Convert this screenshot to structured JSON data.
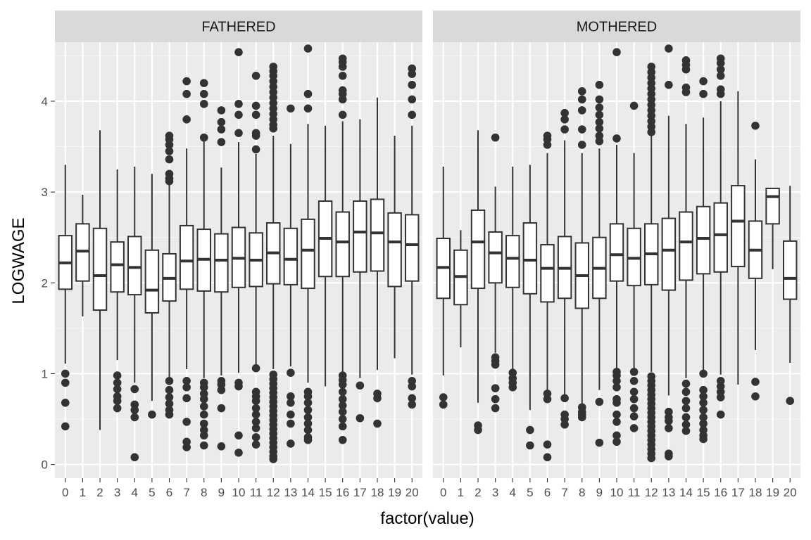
{
  "chart_data": {
    "type": "boxplot",
    "xlabel": "factor(value)",
    "ylabel": "LOGWAGE",
    "ylim": [
      -0.15,
      4.65
    ],
    "y_ticks": [
      0,
      1,
      2,
      3,
      4
    ],
    "categories": [
      "0",
      "1",
      "2",
      "3",
      "4",
      "5",
      "6",
      "7",
      "8",
      "9",
      "10",
      "11",
      "12",
      "13",
      "14",
      "15",
      "16",
      "17",
      "18",
      "19",
      "20"
    ],
    "grid": true,
    "panels": [
      {
        "name": "FATHERED",
        "boxes": [
          {
            "q1": 1.93,
            "median": 2.22,
            "q3": 2.52,
            "lower": 1.11,
            "upper": 3.3,
            "outliers": [
              1.0,
              0.9,
              0.68,
              0.42
            ]
          },
          {
            "q1": 2.02,
            "median": 2.35,
            "q3": 2.65,
            "lower": 1.63,
            "upper": 2.97,
            "outliers": []
          },
          {
            "q1": 1.7,
            "median": 2.08,
            "q3": 2.6,
            "lower": 0.38,
            "upper": 3.68,
            "outliers": []
          },
          {
            "q1": 1.9,
            "median": 2.2,
            "q3": 2.45,
            "lower": 1.15,
            "upper": 3.25,
            "outliers": [
              0.98,
              0.9,
              0.83,
              0.75,
              0.7,
              0.62
            ]
          },
          {
            "q1": 1.87,
            "median": 2.17,
            "q3": 2.51,
            "lower": 0.9,
            "upper": 3.28,
            "outliers": [
              0.83,
              0.66,
              0.6,
              0.52,
              0.08
            ]
          },
          {
            "q1": 1.67,
            "median": 1.92,
            "q3": 2.36,
            "lower": 0.7,
            "upper": 3.2,
            "outliers": [
              0.55
            ]
          },
          {
            "q1": 1.8,
            "median": 2.05,
            "q3": 2.32,
            "lower": 0.95,
            "upper": 3.1,
            "outliers": [
              3.62,
              3.58,
              3.52,
              3.45,
              3.36,
              3.2,
              3.15,
              3.12,
              0.92,
              0.82,
              0.74,
              0.67,
              0.6,
              0.55
            ]
          },
          {
            "q1": 1.93,
            "median": 2.24,
            "q3": 2.63,
            "lower": 1.05,
            "upper": 3.48,
            "outliers": [
              4.22,
              4.08,
              3.8,
              0.92,
              0.85,
              0.73,
              0.47,
              0.25,
              0.19
            ]
          },
          {
            "q1": 1.91,
            "median": 2.26,
            "q3": 2.59,
            "lower": 0.95,
            "upper": 3.58,
            "outliers": [
              4.2,
              4.08,
              3.97,
              3.6,
              0.9,
              0.85,
              0.78,
              0.72,
              0.64,
              0.55,
              0.45,
              0.38,
              0.32,
              0.21
            ]
          },
          {
            "q1": 1.9,
            "median": 2.25,
            "q3": 2.54,
            "lower": 0.98,
            "upper": 3.27,
            "outliers": [
              3.9,
              3.77,
              3.69,
              3.55,
              0.92,
              0.88,
              0.82,
              0.62,
              0.2
            ]
          },
          {
            "q1": 1.95,
            "median": 2.27,
            "q3": 2.61,
            "lower": 1.01,
            "upper": 3.55,
            "outliers": [
              4.54,
              3.97,
              3.85,
              3.65,
              0.9,
              0.86,
              0.32,
              0.13
            ]
          },
          {
            "q1": 1.96,
            "median": 2.25,
            "q3": 2.55,
            "lower": 1.05,
            "upper": 3.42,
            "outliers": [
              4.28,
              3.95,
              3.85,
              3.65,
              3.62,
              3.47,
              1.06,
              0.8,
              0.75,
              0.7,
              0.62,
              0.55,
              0.47,
              0.4,
              0.3,
              0.22
            ]
          },
          {
            "q1": 1.99,
            "median": 2.33,
            "q3": 2.66,
            "lower": 1.05,
            "upper": 3.62,
            "outliers": [
              4.38,
              4.33,
              4.28,
              4.22,
              4.16,
              4.1,
              4.04,
              3.98,
              3.92,
              3.86,
              3.8,
              3.74,
              3.7,
              0.99,
              0.94,
              0.89,
              0.84,
              0.79,
              0.74,
              0.69,
              0.64,
              0.59,
              0.54,
              0.49,
              0.44,
              0.39,
              0.34,
              0.29,
              0.24,
              0.19,
              0.14,
              0.09,
              0.06
            ]
          },
          {
            "q1": 1.98,
            "median": 2.26,
            "q3": 2.6,
            "lower": 1.08,
            "upper": 3.53,
            "outliers": [
              3.92,
              1.01,
              0.75,
              0.68,
              0.55,
              0.45,
              0.23
            ]
          },
          {
            "q1": 1.94,
            "median": 2.36,
            "q3": 2.7,
            "lower": 0.9,
            "upper": 3.75,
            "outliers": [
              4.58,
              4.08,
              3.92,
              0.8,
              0.75,
              0.68,
              0.6,
              0.52,
              0.45,
              0.38,
              0.3,
              0.27
            ]
          },
          {
            "q1": 2.07,
            "median": 2.49,
            "q3": 2.9,
            "lower": 0.86,
            "upper": 3.73,
            "outliers": []
          },
          {
            "q1": 2.07,
            "median": 2.45,
            "q3": 2.78,
            "lower": 1.0,
            "upper": 3.78,
            "outliers": [
              4.47,
              4.43,
              4.38,
              4.28,
              4.12,
              4.08,
              4.02,
              3.85,
              0.98,
              0.93,
              0.88,
              0.8,
              0.72,
              0.65,
              0.58,
              0.5,
              0.42,
              0.27
            ]
          },
          {
            "q1": 2.12,
            "median": 2.56,
            "q3": 2.9,
            "lower": 0.95,
            "upper": 3.8,
            "outliers": [
              0.87,
              0.51
            ]
          },
          {
            "q1": 2.13,
            "median": 2.55,
            "q3": 2.92,
            "lower": 1.04,
            "upper": 4.04,
            "outliers": [
              0.78,
              0.73,
              0.45
            ]
          },
          {
            "q1": 1.96,
            "median": 2.45,
            "q3": 2.77,
            "lower": 1.17,
            "upper": 3.62,
            "outliers": []
          },
          {
            "q1": 2.02,
            "median": 2.42,
            "q3": 2.75,
            "lower": 0.99,
            "upper": 3.73,
            "outliers": [
              4.36,
              4.3,
              4.18,
              4.02,
              3.85,
              0.92,
              0.86,
              0.73,
              0.66
            ]
          }
        ]
      },
      {
        "name": "MOTHERED",
        "boxes": [
          {
            "q1": 1.83,
            "median": 2.17,
            "q3": 2.49,
            "lower": 0.98,
            "upper": 3.28,
            "outliers": [
              0.74,
              0.66
            ]
          },
          {
            "q1": 1.76,
            "median": 2.07,
            "q3": 2.36,
            "lower": 1.29,
            "upper": 2.58,
            "outliers": []
          },
          {
            "q1": 1.94,
            "median": 2.45,
            "q3": 2.8,
            "lower": 0.68,
            "upper": 3.68,
            "outliers": [
              0.43,
              0.38
            ]
          },
          {
            "q1": 2.0,
            "median": 2.33,
            "q3": 2.56,
            "lower": 1.23,
            "upper": 3.06,
            "outliers": [
              3.6,
              1.18,
              1.14,
              1.1,
              0.84,
              0.72,
              0.62
            ]
          },
          {
            "q1": 1.95,
            "median": 2.27,
            "q3": 2.52,
            "lower": 1.03,
            "upper": 3.28,
            "outliers": [
              1.01,
              0.95,
              0.9,
              0.85
            ]
          },
          {
            "q1": 1.88,
            "median": 2.25,
            "q3": 2.66,
            "lower": 0.6,
            "upper": 3.3,
            "outliers": [
              0.38,
              0.21
            ]
          },
          {
            "q1": 1.79,
            "median": 2.16,
            "q3": 2.42,
            "lower": 0.82,
            "upper": 3.43,
            "outliers": [
              3.62,
              3.58,
              3.52,
              0.78,
              0.72,
              0.22,
              0.08
            ]
          },
          {
            "q1": 1.83,
            "median": 2.16,
            "q3": 2.51,
            "lower": 0.75,
            "upper": 3.57,
            "outliers": [
              3.87,
              3.8,
              3.69,
              0.73,
              0.55,
              0.5,
              0.44
            ]
          },
          {
            "q1": 1.72,
            "median": 2.08,
            "q3": 2.44,
            "lower": 0.65,
            "upper": 3.43,
            "outliers": [
              4.11,
              4.02,
              3.9,
              3.69,
              3.52,
              0.63,
              0.58,
              0.55,
              0.52
            ]
          },
          {
            "q1": 1.83,
            "median": 2.16,
            "q3": 2.5,
            "lower": 0.82,
            "upper": 3.48,
            "outliers": [
              4.18,
              4.02,
              3.93,
              3.85,
              3.77,
              3.7,
              3.62,
              3.56,
              0.69,
              0.24
            ]
          },
          {
            "q1": 2.02,
            "median": 2.31,
            "q3": 2.65,
            "lower": 1.05,
            "upper": 3.52,
            "outliers": [
              4.54,
              3.59,
              1.02,
              0.98,
              0.92,
              0.85,
              0.72,
              0.68,
              0.55,
              0.47,
              0.32,
              0.25
            ]
          },
          {
            "q1": 1.97,
            "median": 2.27,
            "q3": 2.6,
            "lower": 1.05,
            "upper": 3.43,
            "outliers": [
              3.95,
              1.02,
              0.92,
              0.8,
              0.72,
              0.62,
              0.53,
              0.4
            ]
          },
          {
            "q1": 1.98,
            "median": 2.32,
            "q3": 2.65,
            "lower": 1.02,
            "upper": 3.62,
            "outliers": [
              4.38,
              4.32,
              4.26,
              4.2,
              4.14,
              4.08,
              4.02,
              3.96,
              3.9,
              3.84,
              3.78,
              3.72,
              3.66,
              0.97,
              0.92,
              0.87,
              0.82,
              0.77,
              0.72,
              0.67,
              0.62,
              0.57,
              0.52,
              0.47,
              0.42,
              0.37,
              0.32,
              0.27,
              0.22,
              0.17,
              0.12,
              0.07
            ]
          },
          {
            "q1": 1.92,
            "median": 2.36,
            "q3": 2.71,
            "lower": 0.76,
            "upper": 3.84,
            "outliers": [
              4.58,
              4.18,
              0.58,
              0.52,
              0.48,
              0.4,
              0.12,
              0.09
            ]
          },
          {
            "q1": 2.03,
            "median": 2.45,
            "q3": 2.78,
            "lower": 0.95,
            "upper": 3.75,
            "outliers": [
              4.45,
              4.4,
              4.35,
              4.15,
              4.1,
              0.89,
              0.8,
              0.7,
              0.62,
              0.52,
              0.44,
              0.37
            ]
          },
          {
            "q1": 2.1,
            "median": 2.49,
            "q3": 2.84,
            "lower": 1.02,
            "upper": 3.82,
            "outliers": [
              4.22,
              4.08,
              1.0,
              0.82,
              0.75,
              0.68,
              0.6,
              0.52,
              0.45,
              0.38,
              0.32,
              0.28
            ]
          },
          {
            "q1": 2.12,
            "median": 2.53,
            "q3": 2.88,
            "lower": 0.99,
            "upper": 4.0,
            "outliers": [
              4.47,
              4.42,
              4.35,
              4.28,
              4.13,
              4.08,
              0.92,
              0.86,
              0.8,
              0.74,
              0.55
            ]
          },
          {
            "q1": 2.18,
            "median": 2.68,
            "q3": 3.07,
            "lower": 0.88,
            "upper": 4.11,
            "outliers": []
          },
          {
            "q1": 2.05,
            "median": 2.36,
            "q3": 2.68,
            "lower": 1.26,
            "upper": 3.36,
            "outliers": [
              3.73,
              0.91,
              0.75
            ]
          },
          {
            "q1": 2.65,
            "median": 2.95,
            "q3": 3.04,
            "lower": 2.15,
            "upper": 3.04,
            "outliers": []
          },
          {
            "q1": 1.82,
            "median": 2.05,
            "q3": 2.46,
            "lower": 1.12,
            "upper": 3.07,
            "outliers": [
              0.7
            ]
          }
        ]
      }
    ]
  }
}
